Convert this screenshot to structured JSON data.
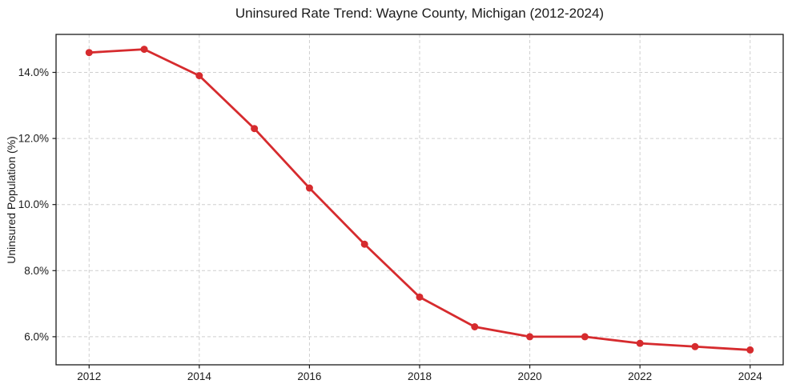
{
  "figure": {
    "background": "#ffffff"
  },
  "chart_data": {
    "type": "line",
    "title": "Uninsured Rate Trend: Wayne County, Michigan (2012-2024)",
    "xlabel": "",
    "ylabel": "Uninsured Population (%)",
    "x": [
      2012,
      2013,
      2014,
      2015,
      2016,
      2017,
      2018,
      2019,
      2020,
      2021,
      2022,
      2023,
      2024
    ],
    "values": [
      14.6,
      14.7,
      13.9,
      12.3,
      10.5,
      8.8,
      7.2,
      6.3,
      6.0,
      6.0,
      5.8,
      5.7,
      5.6
    ],
    "xticks": [
      2012,
      2014,
      2016,
      2018,
      2020,
      2022,
      2024
    ],
    "xtick_labels": [
      "2012",
      "2014",
      "2016",
      "2018",
      "2020",
      "2022",
      "2024"
    ],
    "yticks": [
      6,
      8,
      10,
      12,
      14
    ],
    "ytick_labels": [
      "6.0%",
      "8.0%",
      "10.0%",
      "12.0%",
      "14.0%"
    ],
    "xlim": [
      2011.4,
      2024.6
    ],
    "ylim": [
      5.15,
      15.15
    ],
    "grid": true,
    "legend": "none",
    "style": {
      "line_color": "#d62b2e",
      "marker_color": "#d62b2e",
      "grid_color": "#cfcfcf",
      "grid_dash": "4 3",
      "axis_color": "#1a1a1a",
      "tick_color": "#1a1a1a",
      "line_width": 2.8,
      "marker_radius": 4.5
    }
  }
}
